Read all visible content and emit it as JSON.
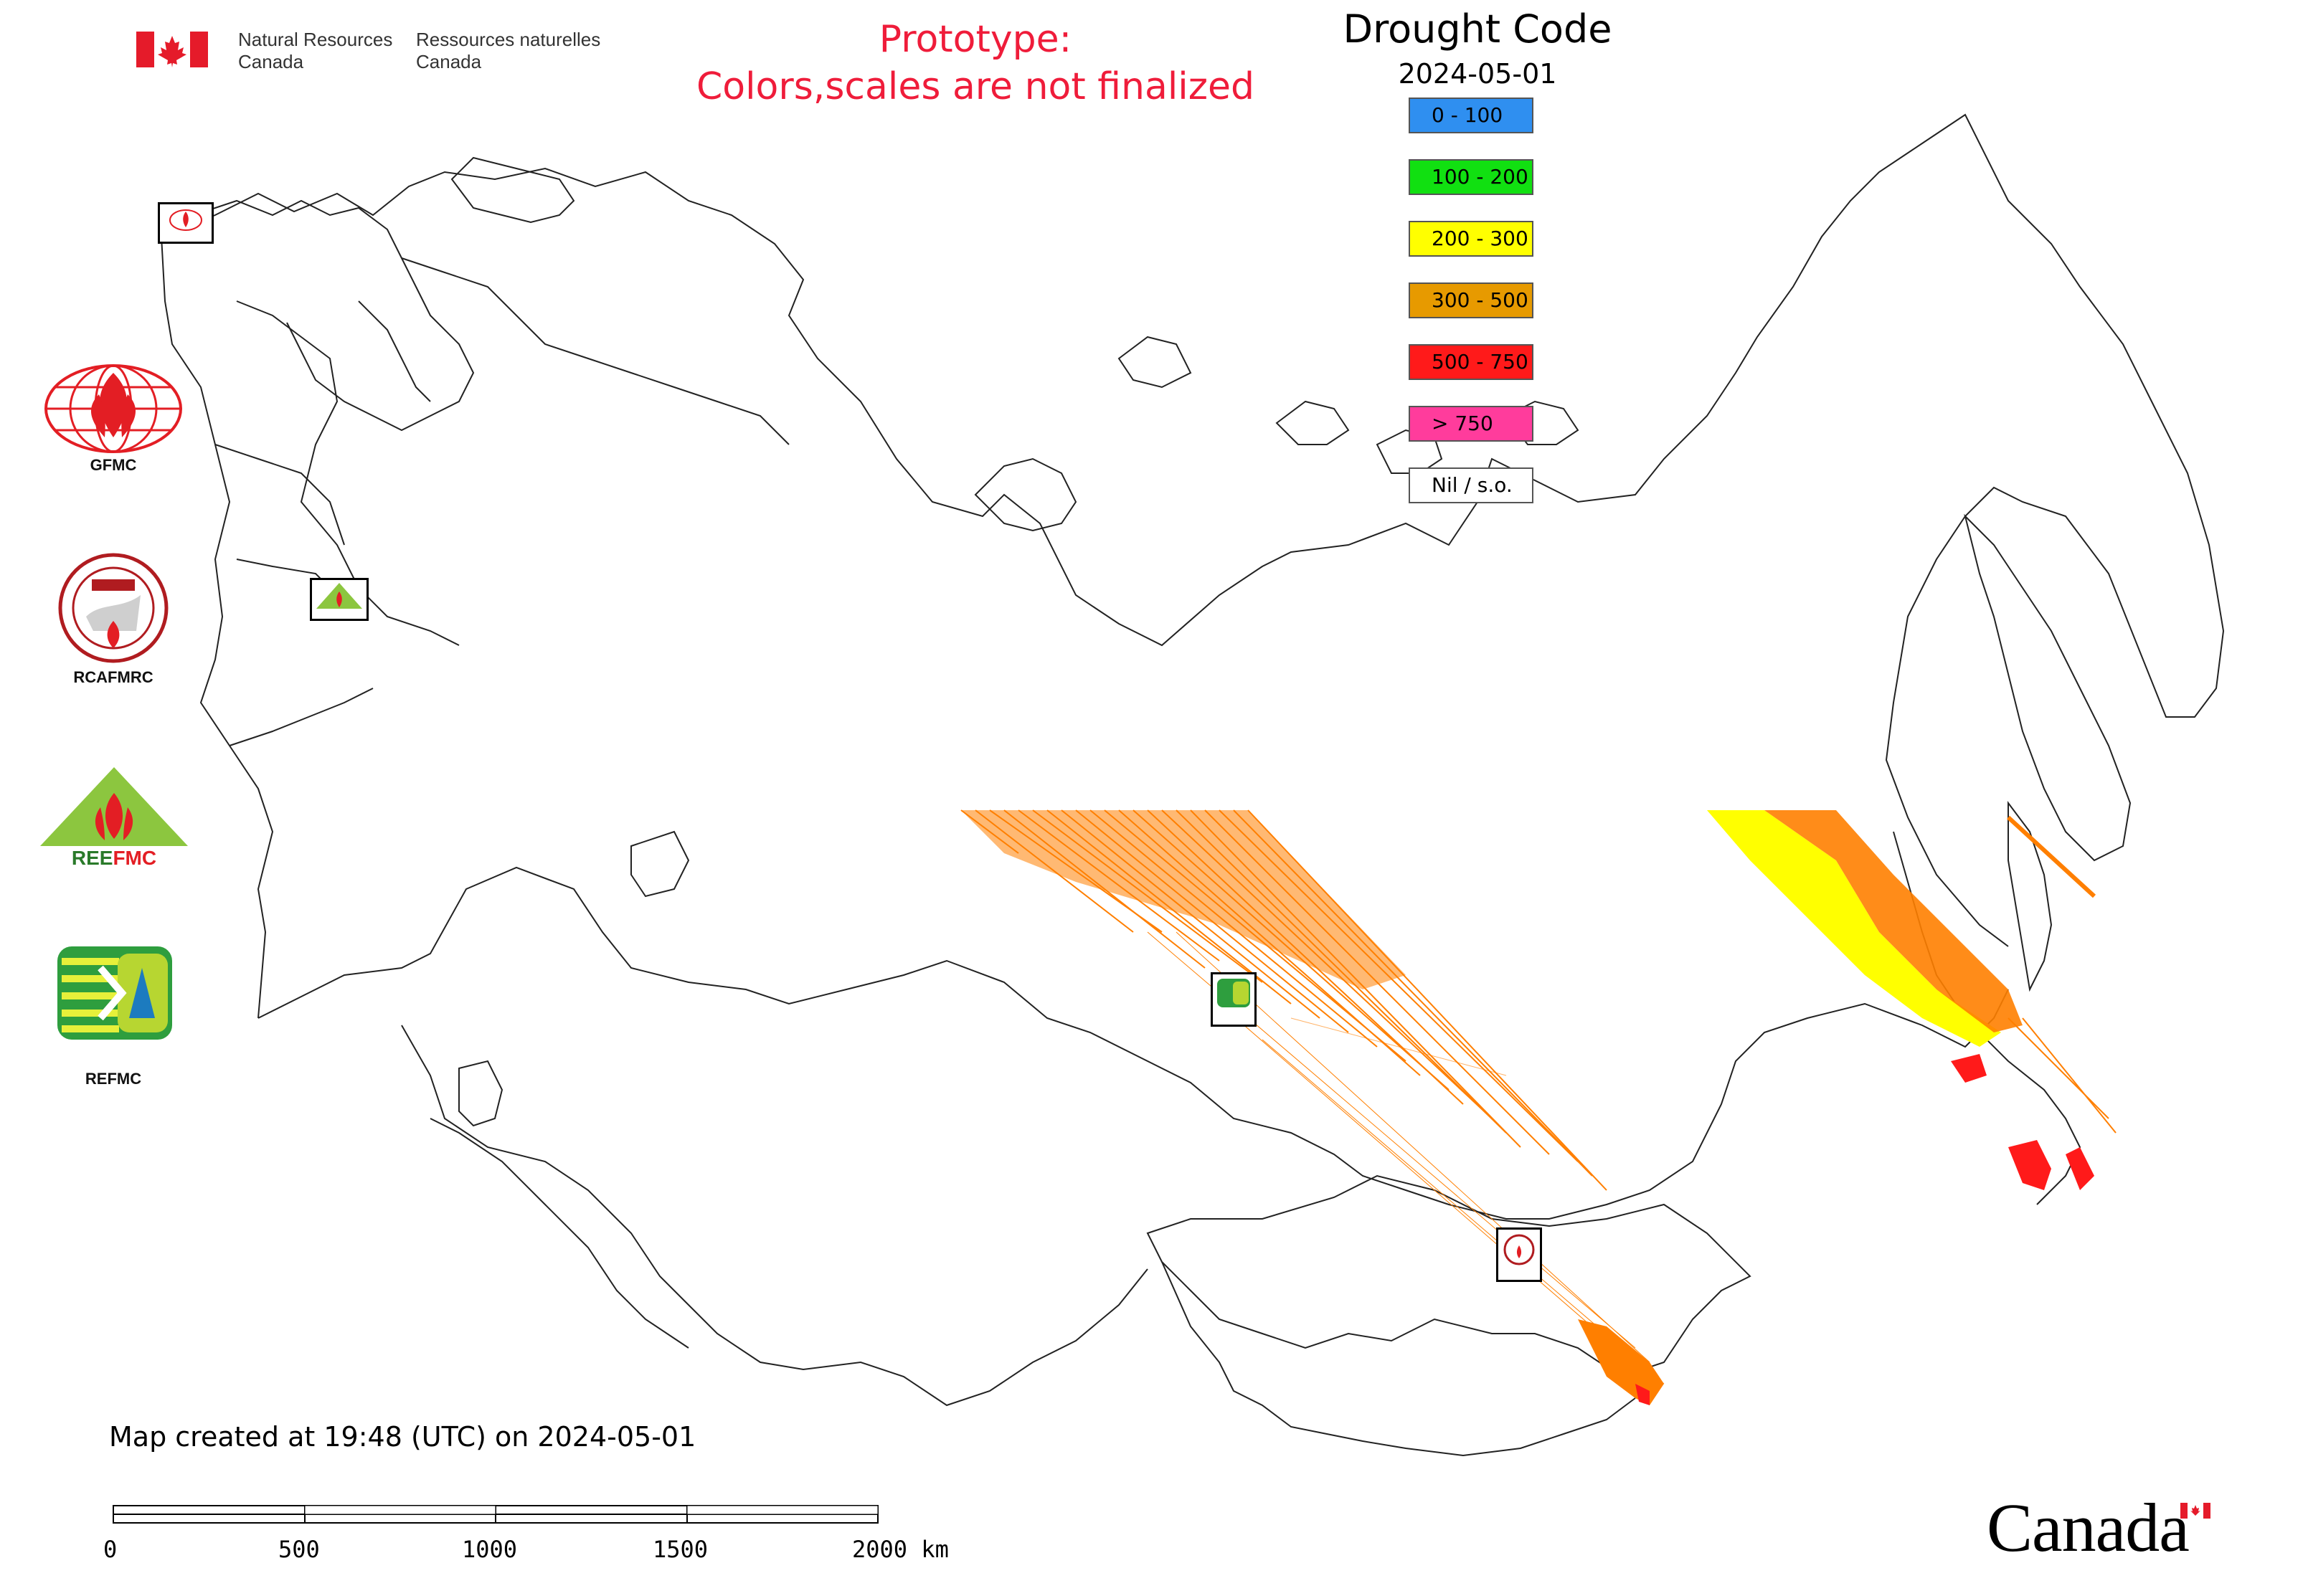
{
  "header": {
    "org_en_line1": "Natural Resources",
    "org_en_line2": "Canada",
    "org_fr_line1": "Ressources naturelles",
    "org_fr_line2": "Canada",
    "prototype_line1": "Prototype:",
    "prototype_line2": "Colors,scales are not finalized"
  },
  "legend": {
    "title": "Drought Code",
    "date": "2024-05-01",
    "items": [
      {
        "label": "0 - 100",
        "color": "#2f8ff0"
      },
      {
        "label": "100 - 200",
        "color": "#11e011"
      },
      {
        "label": "200 - 300",
        "color": "#ffff00"
      },
      {
        "label": "300 - 500",
        "color": "#e79a00"
      },
      {
        "label": "500 - 750",
        "color": "#ff1a1a"
      },
      {
        "label": "> 750",
        "color": "#ff3c9c"
      },
      {
        "label": "Nil / s.o.",
        "color": "#ffffff"
      }
    ]
  },
  "logos": [
    {
      "name": "GFMC",
      "label": "GFMC"
    },
    {
      "name": "RCAFMRC",
      "label": "RCAFMRC"
    },
    {
      "name": "REEFMC",
      "label": ""
    },
    {
      "name": "REFMC",
      "label": "REFMC"
    }
  ],
  "footer": {
    "created": "Map created at 19:48 (UTC) on 2024-05-01",
    "scale_ticks": [
      "0",
      "500",
      "1000",
      "1500",
      "2000 km"
    ],
    "wordmark": "Canada"
  },
  "colors": {
    "accent_red": "#ef1c3a",
    "orange_fill": "#ff7f00",
    "yellow_fill": "#ffff00",
    "red_fill": "#ff1a1a"
  }
}
